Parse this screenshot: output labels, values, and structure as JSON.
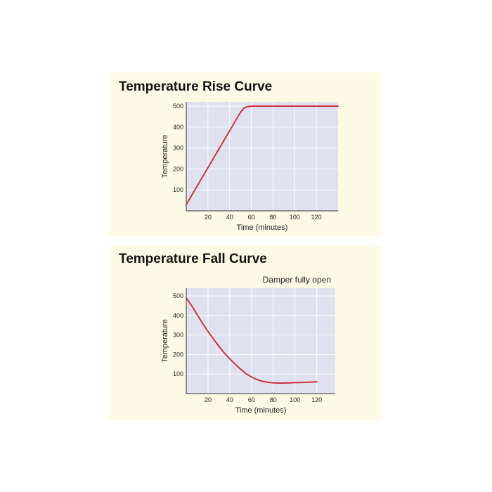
{
  "charts": {
    "rise": {
      "title": "Temperature Rise Curve",
      "xlabel": "Time (minutes)",
      "ylabel": "Temperature",
      "annotation": ""
    },
    "fall": {
      "title": "Temperature Fall Curve",
      "xlabel": "Time (minutes)",
      "ylabel": "Temperature",
      "annotation": "Damper fully open"
    }
  },
  "colors": {
    "plot_background": "#dfe1ef",
    "grid": "#ffffff",
    "curve": "#cc3340",
    "panel_background": "#fdfbe6"
  },
  "chart_data": [
    {
      "type": "line",
      "title": "Temperature Rise Curve",
      "xlabel": "Time (minutes)",
      "ylabel": "Temperature",
      "xlim": [
        0,
        140
      ],
      "ylim": [
        0,
        520
      ],
      "xticks": [
        20,
        40,
        60,
        80,
        100,
        120
      ],
      "yticks": [
        100,
        200,
        300,
        400,
        500
      ],
      "grid": true,
      "series": [
        {
          "x": [
            0,
            50,
            53,
            56,
            60,
            140
          ],
          "y": [
            30,
            470,
            490,
            497,
            500,
            500
          ]
        }
      ]
    },
    {
      "type": "line",
      "title": "Temperature Fall Curve",
      "xlabel": "Time (minutes)",
      "ylabel": "Temperature",
      "xlim": [
        0,
        137
      ],
      "ylim": [
        0,
        540
      ],
      "xticks": [
        20,
        40,
        60,
        80,
        100,
        120
      ],
      "yticks": [
        100,
        200,
        300,
        400,
        500
      ],
      "grid": true,
      "annotation": "Damper fully open",
      "series": [
        {
          "x": [
            0,
            5,
            10,
            15,
            20,
            25,
            30,
            35,
            40,
            45,
            50,
            55,
            60,
            65,
            70,
            75,
            80,
            85,
            90,
            95,
            100,
            105,
            110,
            115,
            120
          ],
          "y": [
            490,
            450,
            405,
            360,
            318,
            280,
            243,
            208,
            178,
            150,
            125,
            102,
            85,
            72,
            63,
            58,
            55,
            54,
            54,
            55,
            56,
            57,
            58,
            59,
            60
          ]
        }
      ]
    }
  ]
}
